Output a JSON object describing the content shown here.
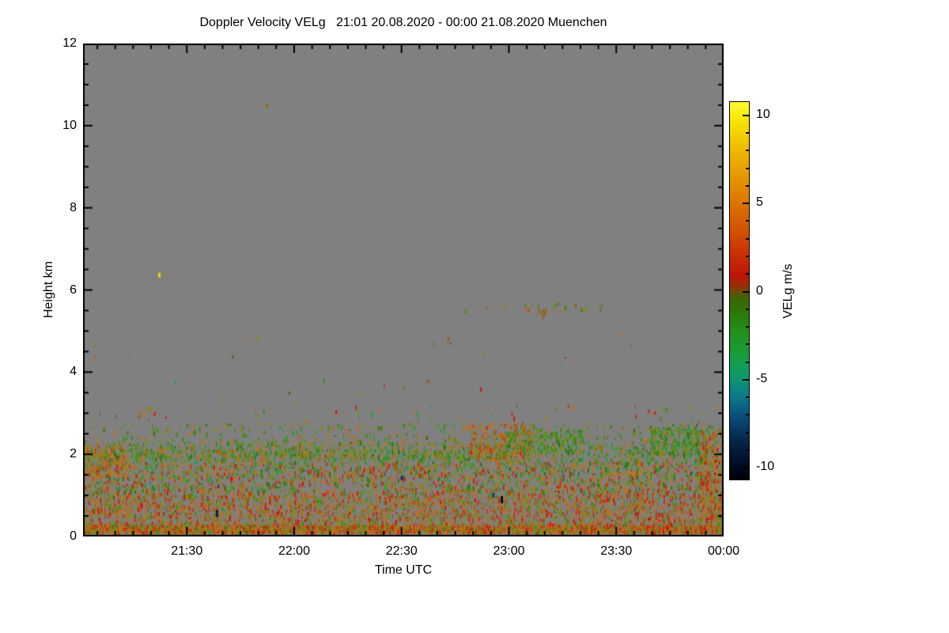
{
  "page": {
    "background": "#ffffff"
  },
  "chart_data": {
    "type": "heatmap",
    "title": "Doppler Velocity VELg   21:01 20.08.2020 - 00:00 21.08.2020 Muenchen",
    "xlabel": "Time UTC",
    "ylabel": "Height km",
    "x_start_label": "21:01",
    "x_end_label": "00:00",
    "x_total_minutes": 179,
    "x_major_ticks": [
      {
        "label": "21:30",
        "minute": 29
      },
      {
        "label": "22:00",
        "minute": 59
      },
      {
        "label": "22:30",
        "minute": 89
      },
      {
        "label": "23:00",
        "minute": 119
      },
      {
        "label": "23:30",
        "minute": 149
      },
      {
        "label": "00:00",
        "minute": 179
      }
    ],
    "x_minor_step_minutes": 5,
    "x_minor_first_offset": 4,
    "ylim": [
      0,
      12
    ],
    "y_major_ticks": [
      {
        "label": "0",
        "km": 0
      },
      {
        "label": "2",
        "km": 2
      },
      {
        "label": "4",
        "km": 4
      },
      {
        "label": "6",
        "km": 6
      },
      {
        "label": "8",
        "km": 8
      },
      {
        "label": "10",
        "km": 10
      },
      {
        "label": "12",
        "km": 12
      }
    ],
    "y_minor_step_km": 0.5,
    "no_data_color": "#808080",
    "grid": false,
    "colorbar": {
      "label": "VELg m/s",
      "value_range": [
        -10.75,
        10.75
      ],
      "major_ticks": [
        {
          "label": "10",
          "value": 10
        },
        {
          "label": "5",
          "value": 5
        },
        {
          "label": "0",
          "value": 0
        },
        {
          "label": "-5",
          "value": -5
        },
        {
          "label": "-10",
          "value": -10
        }
      ],
      "minor_step": 1,
      "gradient_stops": [
        {
          "pos": 0,
          "color": "#fcfc34"
        },
        {
          "pos": 5,
          "color": "#f7e400"
        },
        {
          "pos": 14,
          "color": "#eeb200"
        },
        {
          "pos": 24,
          "color": "#e08200"
        },
        {
          "pos": 32,
          "color": "#d45c00"
        },
        {
          "pos": 40,
          "color": "#c93205"
        },
        {
          "pos": 46,
          "color": "#bd1407"
        },
        {
          "pos": 49,
          "color": "#8f3305"
        },
        {
          "pos": 50.5,
          "color": "#635102"
        },
        {
          "pos": 52,
          "color": "#3d6404"
        },
        {
          "pos": 56,
          "color": "#2d7a08"
        },
        {
          "pos": 61,
          "color": "#22901c"
        },
        {
          "pos": 66,
          "color": "#1a9a36"
        },
        {
          "pos": 70,
          "color": "#129e56"
        },
        {
          "pos": 73.5,
          "color": "#0f9372"
        },
        {
          "pos": 78,
          "color": "#0c7a8a"
        },
        {
          "pos": 82,
          "color": "#0a5880"
        },
        {
          "pos": 86,
          "color": "#083c66"
        },
        {
          "pos": 90,
          "color": "#062448"
        },
        {
          "pos": 95,
          "color": "#03102a"
        },
        {
          "pos": 100,
          "color": "#000006"
        }
      ]
    },
    "speckle": {
      "seed": 1234,
      "palettes": {
        "warm": [
          "#c8641a",
          "#b5791f",
          "#9c5a10",
          "#c43018",
          "#c8641a",
          "#b5791f",
          "#8a8416"
        ],
        "green": [
          "#3d8c12",
          "#2a7410",
          "#6e9414",
          "#22a032",
          "#3d8c12",
          "#8a8416"
        ],
        "mix": [
          "#b5791f",
          "#c8641a",
          "#8a8416",
          "#6e9414",
          "#3d8c12",
          "#c43018",
          "#2a7410",
          "#22a032",
          "#d41400",
          "#b5791f"
        ],
        "warm_mix": [
          "#c8641a",
          "#b5791f",
          "#9c5a10",
          "#c43018",
          "#8a8416",
          "#6e9414",
          "#3d8c12",
          "#d41400",
          "#c8641a"
        ],
        "green_mix": [
          "#6e9414",
          "#3d8c12",
          "#8a8416",
          "#2a7410",
          "#b5791f",
          "#c8641a",
          "#22a032",
          "#3d8c12"
        ]
      },
      "layers": [
        {
          "h0": 0.1,
          "h1": 0.3,
          "density": 0.8,
          "palette": "warm_mix"
        },
        {
          "h0": 0.3,
          "h1": 1.05,
          "density": 0.5,
          "palette": "warm_mix"
        },
        {
          "h0": 1.05,
          "h1": 1.8,
          "density": 0.42,
          "palette": "mix"
        },
        {
          "h0": 1.8,
          "h1": 2.3,
          "density": 0.32,
          "palette": "green_mix"
        },
        {
          "h0": 2.3,
          "h1": 2.75,
          "density": 0.12,
          "palette": "green_mix"
        },
        {
          "h0": 2.75,
          "h1": 3.2,
          "density": 0.025,
          "palette": "mix"
        },
        {
          "h0": 3.2,
          "h1": 5.0,
          "density": 0.002,
          "palette": "mix"
        }
      ],
      "patches": [
        {
          "t0": 0,
          "t1": 12,
          "h0": 1.5,
          "h1": 2.2,
          "density": 0.45,
          "palette": "warm"
        },
        {
          "t0": 0,
          "t1": 120,
          "h0": 1.9,
          "h1": 2.12,
          "density": 0.38,
          "palette": "green_mix"
        },
        {
          "t0": 108,
          "t1": 125,
          "h0": 1.85,
          "h1": 2.75,
          "density": 0.42,
          "palette": "warm"
        },
        {
          "t0": 118,
          "t1": 140,
          "h0": 2.05,
          "h1": 2.6,
          "density": 0.38,
          "palette": "green"
        },
        {
          "t0": 158,
          "t1": 172,
          "h0": 2.0,
          "h1": 2.65,
          "density": 0.5,
          "palette": "green"
        },
        {
          "t0": 0,
          "t1": 179,
          "h0": 0.12,
          "h1": 0.26,
          "density": 0.9,
          "palette": "warm_mix"
        },
        {
          "t0": 172,
          "t1": 179,
          "h0": 0.3,
          "h1": 2.6,
          "density": 0.4,
          "palette": "warm_mix"
        }
      ],
      "features": [
        {
          "type": "dash",
          "time_min": 51,
          "height_km": 10.55,
          "color": "#8a7013",
          "w": 3,
          "h": 6
        },
        {
          "type": "dash",
          "time_min": 21,
          "height_km": 6.42,
          "color": "#f0d400",
          "w": 3,
          "h": 6
        },
        {
          "type": "dash",
          "time_min": 48.6,
          "height_km": 4.87,
          "color": "#8a8416",
          "w": 3,
          "h": 4
        },
        {
          "type": "dash",
          "time_min": 96,
          "height_km": 3.81,
          "color": "#9c5a10",
          "w": 3,
          "h": 4
        },
        {
          "type": "dash",
          "time_min": 89.5,
          "height_km": 3.66,
          "color": "#3d8c12",
          "w": 2,
          "h": 4
        },
        {
          "type": "dash",
          "time_min": 57.5,
          "height_km": 3.53,
          "color": "#2a7410",
          "w": 2,
          "h": 4
        },
        {
          "type": "cluster",
          "time_min": 17,
          "height_km": 3.08,
          "spread_min": 2.5,
          "spread_km": 0.1,
          "count": 9,
          "colors": [
            "#9c6a10",
            "#8a8416",
            "#b5791f"
          ]
        },
        {
          "type": "line",
          "t0": 104,
          "t1": 145,
          "height_km": 5.62,
          "spread_km": 0.1,
          "count": 30,
          "colors": [
            "#8a8416",
            "#9c5a10",
            "#3d8c12",
            "#c8641a"
          ]
        },
        {
          "type": "cluster",
          "time_min": 128,
          "height_km": 5.52,
          "spread_min": 1.5,
          "spread_km": 0.12,
          "count": 13,
          "colors": [
            "#8a6a10",
            "#9c5a10",
            "#b5791f"
          ]
        },
        {
          "type": "dash",
          "time_min": 139,
          "height_km": 5.55,
          "color": "#3d8c12",
          "w": 3,
          "h": 4
        },
        {
          "type": "dash",
          "time_min": 37.1,
          "height_km": 0.65,
          "color": "#0a1a40",
          "w": 3,
          "h": 9
        },
        {
          "type": "dash",
          "time_min": 116.7,
          "height_km": 0.98,
          "color": "#000820",
          "w": 3,
          "h": 9
        },
        {
          "type": "dash",
          "time_min": 88.8,
          "height_km": 1.48,
          "color": "#12307a",
          "w": 3,
          "h": 6
        },
        {
          "type": "dash",
          "time_min": 114.3,
          "height_km": 1.06,
          "color": "#1a3a7a",
          "w": 3,
          "h": 6
        },
        {
          "type": "dash",
          "time_min": 37.6,
          "height_km": 1.27,
          "color": "#14406e",
          "w": 2,
          "h": 5
        },
        {
          "type": "hline",
          "t0": 100.5,
          "t1": 109.5,
          "height_km": 1.12,
          "color": "#a86a14"
        },
        {
          "type": "hline",
          "t0": 147,
          "t1": 155,
          "height_km": 1.54,
          "color": "#b5791f"
        }
      ]
    }
  }
}
